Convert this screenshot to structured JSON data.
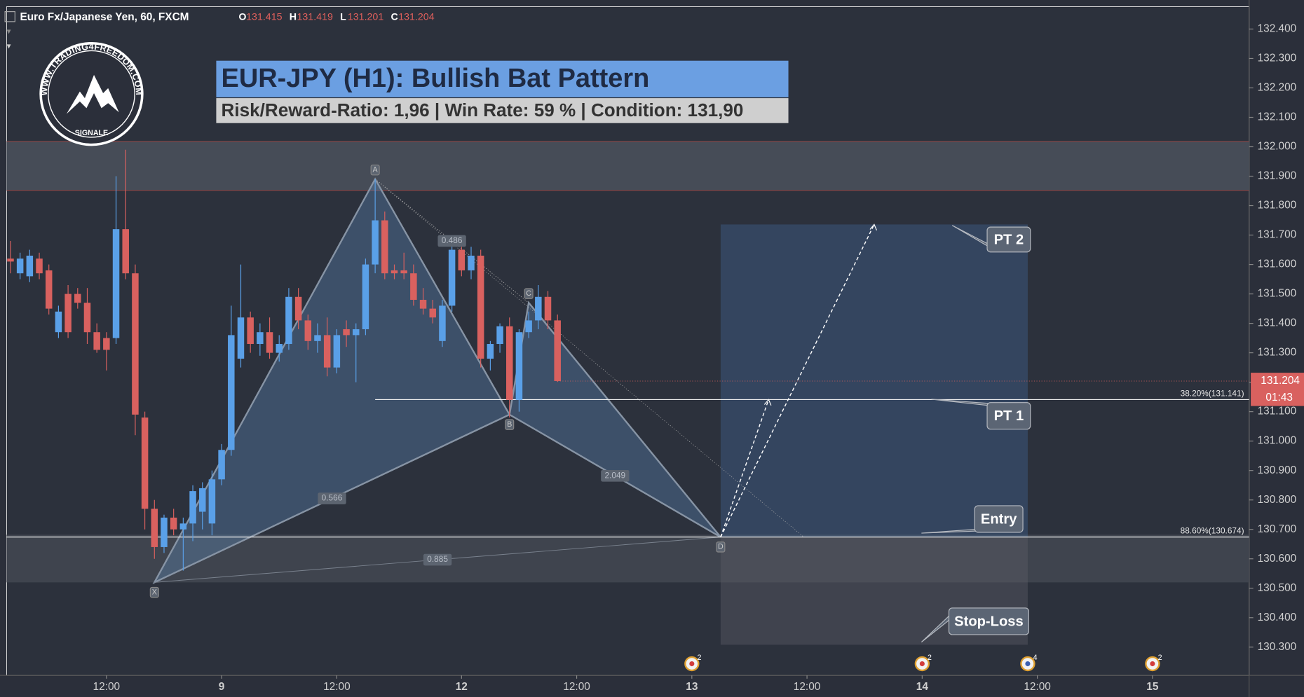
{
  "header": {
    "symbol": "Euro Fx/Japanese Yen, 60, FXCM",
    "ohlc": [
      {
        "key": "O",
        "value": "131.415"
      },
      {
        "key": "H",
        "value": "131.419"
      },
      {
        "key": "L",
        "value": "131.201"
      },
      {
        "key": "C",
        "value": "131.204"
      }
    ]
  },
  "logo": {
    "url": "WWW.TRADING4FREEDOM.COM",
    "sub": "SIGNALE"
  },
  "chart_data": {
    "type": "candlestick",
    "title": "EUR-JPY (H1): Bullish Bat Pattern",
    "subtitle": "Risk/Reward-Ratio: 1,96 | Win Rate: 59 % | Condition: 131,90",
    "up_color": "#5aa0e8",
    "down_color": "#d9615f",
    "x": [
      -10,
      -9,
      -8,
      -7,
      -6,
      -5,
      -4,
      -3,
      -2,
      -1,
      0,
      1,
      2,
      3,
      4,
      5,
      6,
      7,
      8,
      9,
      10,
      11,
      12,
      13,
      14,
      15,
      16,
      17,
      18,
      19,
      20,
      21,
      22,
      23,
      24,
      25,
      26,
      27,
      28,
      29,
      30,
      31,
      32,
      33,
      34,
      35,
      36,
      37,
      38,
      39,
      40,
      41,
      42,
      43,
      44,
      45,
      46,
      47
    ],
    "open": [
      131.62,
      131.57,
      131.56,
      131.62,
      131.58,
      131.37,
      131.5,
      131.5,
      131.47,
      131.37,
      131.35,
      131.35,
      131.72,
      131.57,
      131.08,
      130.77,
      130.64,
      130.74,
      130.7,
      130.72,
      130.76,
      130.72,
      130.87,
      130.97,
      131.28,
      131.42,
      131.33,
      131.37,
      131.3,
      131.33,
      131.49,
      131.41,
      131.34,
      131.36,
      131.25,
      131.38,
      131.36,
      131.38,
      131.6,
      131.75,
      131.58,
      131.58,
      131.57,
      131.48,
      131.45,
      131.34,
      131.46,
      131.65,
      131.58,
      131.63,
      131.28,
      131.33,
      131.39,
      131.14,
      131.37,
      131.41,
      131.49,
      131.41
    ],
    "high": [
      131.68,
      131.64,
      131.65,
      131.64,
      131.6,
      131.46,
      131.53,
      131.52,
      131.52,
      131.4,
      131.37,
      131.9,
      131.99,
      131.6,
      131.1,
      130.8,
      130.75,
      130.77,
      130.74,
      130.85,
      130.86,
      130.9,
      130.99,
      131.46,
      131.6,
      131.44,
      131.4,
      131.42,
      131.36,
      131.52,
      131.52,
      131.43,
      131.4,
      131.42,
      131.38,
      131.41,
      131.4,
      131.62,
      131.89,
      131.78,
      131.6,
      131.64,
      131.6,
      131.52,
      131.48,
      131.48,
      131.67,
      131.68,
      131.66,
      131.65,
      131.34,
      131.4,
      131.42,
      131.38,
      131.44,
      131.53,
      131.51,
      131.43
    ],
    "low": [
      131.57,
      131.55,
      131.54,
      131.55,
      131.43,
      131.35,
      131.35,
      131.45,
      131.33,
      131.3,
      131.24,
      131.33,
      131.55,
      131.02,
      130.7,
      130.6,
      130.62,
      130.68,
      130.56,
      130.66,
      130.7,
      130.68,
      130.85,
      130.95,
      131.25,
      131.3,
      131.29,
      131.28,
      131.27,
      131.31,
      131.38,
      131.31,
      131.3,
      131.22,
      131.23,
      131.32,
      131.2,
      131.36,
      131.57,
      131.55,
      131.55,
      131.55,
      131.46,
      131.43,
      131.4,
      131.32,
      131.44,
      131.56,
      131.55,
      131.25,
      131.24,
      131.3,
      131.08,
      131.1,
      131.35,
      131.38,
      131.38,
      131.201
    ],
    "close": [
      131.61,
      131.62,
      131.63,
      131.57,
      131.45,
      131.44,
      131.37,
      131.47,
      131.37,
      131.31,
      131.31,
      131.72,
      131.57,
      131.09,
      130.77,
      130.64,
      130.74,
      130.7,
      130.72,
      130.83,
      130.84,
      130.87,
      130.97,
      131.36,
      131.42,
      131.33,
      131.37,
      131.3,
      131.33,
      131.49,
      131.41,
      131.34,
      131.36,
      131.25,
      131.36,
      131.36,
      131.38,
      131.6,
      131.75,
      131.57,
      131.57,
      131.57,
      131.48,
      131.45,
      131.42,
      131.46,
      131.65,
      131.58,
      131.63,
      131.28,
      131.33,
      131.39,
      131.14,
      131.37,
      131.41,
      131.49,
      131.41,
      131.204
    ],
    "xlim": [
      -10.4,
      119.07
    ],
    "xticks": [
      {
        "value": 0,
        "label": "12:00"
      },
      {
        "value": 12,
        "label": "9"
      },
      {
        "value": 24,
        "label": "12:00"
      },
      {
        "value": 37,
        "label": "12"
      },
      {
        "value": 49,
        "label": "12:00"
      },
      {
        "value": 61,
        "label": "13"
      },
      {
        "value": 73,
        "label": "12:00"
      },
      {
        "value": 85,
        "label": "14"
      },
      {
        "value": 97,
        "label": "12:00"
      },
      {
        "value": 109,
        "label": "15"
      }
    ],
    "ylim": [
      130.204,
      132.476
    ],
    "yticks": [
      {
        "value": 130.3,
        "label": "130.300"
      },
      {
        "value": 130.4,
        "label": "130.400"
      },
      {
        "value": 130.5,
        "label": "130.500"
      },
      {
        "value": 130.6,
        "label": "130.600"
      },
      {
        "value": 130.7,
        "label": "130.700"
      },
      {
        "value": 130.8,
        "label": "130.800"
      },
      {
        "value": 130.9,
        "label": "130.900"
      },
      {
        "value": 131.0,
        "label": "131.000"
      },
      {
        "value": 131.1,
        "label": "131.100"
      },
      {
        "value": 131.2,
        "label": "131.200"
      },
      {
        "value": 131.3,
        "label": "131.300"
      },
      {
        "value": 131.4,
        "label": "131.400"
      },
      {
        "value": 131.5,
        "label": "131.500"
      },
      {
        "value": 131.6,
        "label": "131.600"
      },
      {
        "value": 131.7,
        "label": "131.700"
      },
      {
        "value": 131.8,
        "label": "131.800"
      },
      {
        "value": 131.9,
        "label": "131.900"
      },
      {
        "value": 132.0,
        "label": "132.000"
      },
      {
        "value": 132.1,
        "label": "132.100"
      },
      {
        "value": 132.2,
        "label": "132.200"
      },
      {
        "value": 132.3,
        "label": "132.300"
      },
      {
        "value": 132.4,
        "label": "132.400"
      }
    ],
    "zones": [
      {
        "low": 131.852,
        "high": 132.018,
        "color": "#464c57"
      },
      {
        "low": 130.52,
        "high": 130.682,
        "color": "#3f444e"
      }
    ],
    "points": [
      {
        "label": "X",
        "x": 5,
        "y": 130.52
      },
      {
        "label": "A",
        "x": 28,
        "y": 131.89
      },
      {
        "label": "B",
        "x": 42,
        "y": 131.09
      },
      {
        "label": "C",
        "x": 44,
        "y": 131.47
      },
      {
        "label": "D",
        "x": 64,
        "y": 130.674
      }
    ],
    "ratios": [
      0.566,
      0.486,
      2.049,
      0.885
    ],
    "fib_lines": [
      {
        "label": "38.20%(131.141)",
        "value": 131.141,
        "x_start": 28
      },
      {
        "label": "88.60%(130.674)",
        "value": 130.674,
        "x_start": -10.4
      }
    ],
    "position": {
      "x_start": 64,
      "x_end": 96,
      "target": 131.736,
      "entry": 130.674,
      "stop": 130.308
    },
    "callouts": [
      "PT 2",
      "PT 1",
      "Entry",
      "Stop-Loss"
    ],
    "last_price": {
      "value": 131.204,
      "countdown": "01:43"
    },
    "events": [
      {
        "x": 61,
        "count": 2
      },
      {
        "x": 85,
        "count": 2
      },
      {
        "x": 96,
        "count": 4
      },
      {
        "x": 109,
        "count": 2
      }
    ]
  }
}
